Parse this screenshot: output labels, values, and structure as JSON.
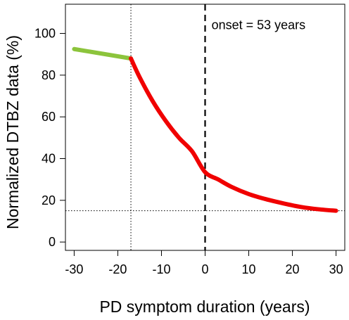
{
  "chart_data": {
    "type": "line",
    "xlabel": "PD symptom duration (years)",
    "ylabel": "Normalized DTBZ data (%)",
    "xlim": [
      -32,
      32
    ],
    "ylim": [
      -4,
      114
    ],
    "xticks": [
      -30,
      -20,
      -10,
      0,
      10,
      20,
      30
    ],
    "yticks": [
      0,
      20,
      40,
      60,
      80,
      100
    ],
    "grid": false,
    "legend": "none",
    "series": [
      {
        "color": "#8cc43c",
        "x": [
          -30,
          -17
        ],
        "y": [
          92.5,
          88
        ]
      },
      {
        "color": "#f00000",
        "x": [
          -17,
          -15,
          -12,
          -9,
          -6,
          -3,
          0,
          3,
          6,
          10,
          14,
          18,
          22,
          26,
          30
        ],
        "y": [
          88,
          79,
          67.5,
          58,
          50,
          43.5,
          33.5,
          30,
          26.5,
          23,
          20.5,
          18.5,
          16.8,
          15.7,
          15
        ]
      }
    ],
    "reference_lines": [
      {
        "orientation": "vertical",
        "x": -17,
        "style": "dotted"
      },
      {
        "orientation": "horizontal",
        "y": 15,
        "style": "dotted"
      },
      {
        "orientation": "vertical",
        "x": 0,
        "style": "dashed"
      }
    ],
    "annotations": [
      {
        "text": "onset = 53 years",
        "x": 0.5,
        "y": 104,
        "anchor": "start"
      }
    ]
  }
}
